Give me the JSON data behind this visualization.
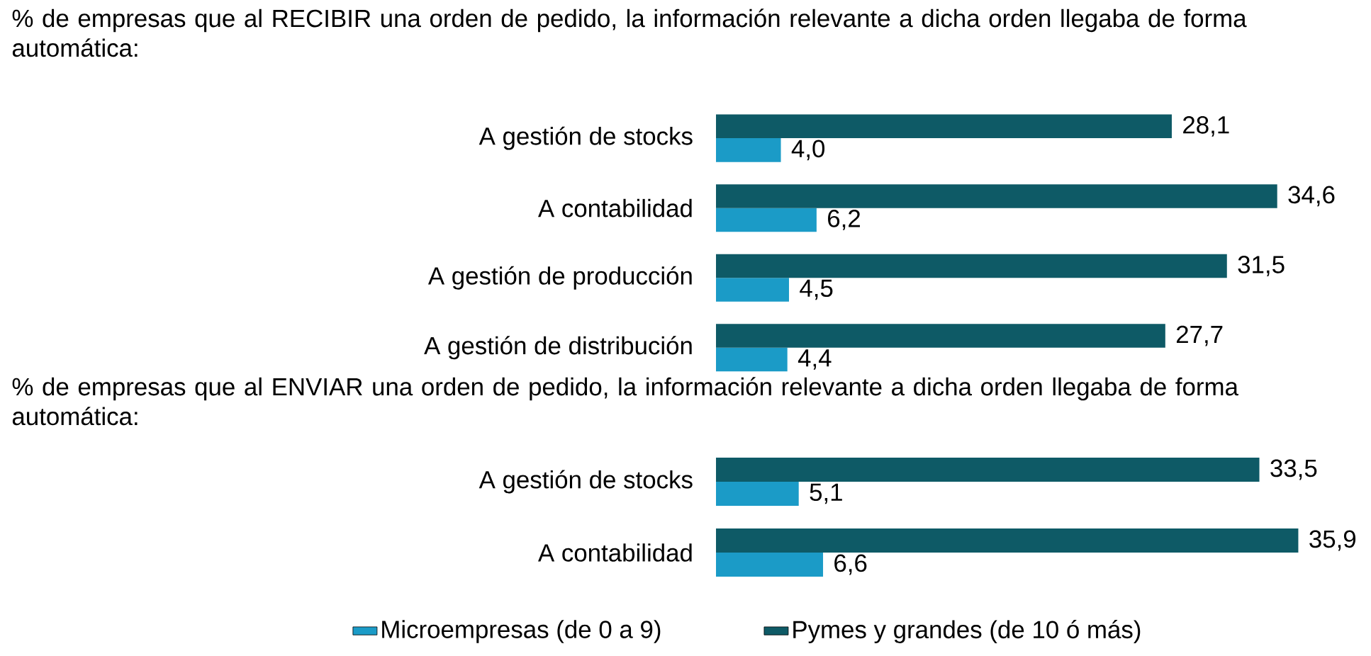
{
  "chart_data": [
    {
      "type": "bar",
      "orientation": "horizontal",
      "title": "% de empresas que al RECIBIR una orden de pedido, la información relevante a dicha orden llegaba de forma automática:",
      "categories": [
        "A gestión de stocks",
        "A contabilidad",
        "A gestión de producción",
        "A gestión de distribución"
      ],
      "tick_labels": "y",
      "legend": false,
      "series": [
        {
          "color": "#1b9bc7",
          "values": [
            4.0,
            6.2,
            4.5,
            4.4
          ],
          "value_labels": [
            "4,0",
            "6,2",
            "4,5",
            "4,4"
          ]
        },
        {
          "color": "#0e5a66",
          "values": [
            28.1,
            34.6,
            31.5,
            27.7
          ],
          "value_labels": [
            "28,1",
            "34,6",
            "31,5",
            "27,7"
          ]
        }
      ]
    },
    {
      "type": "bar",
      "orientation": "horizontal",
      "title": "% de empresas que al ENVIAR una orden de pedido, la información relevante a dicha orden llegaba de forma automática:",
      "categories": [
        "A gestión de stocks",
        "A contabilidad"
      ],
      "tick_labels": "y",
      "legend": "bottom",
      "series": [
        {
          "name": "Microempresas (de 0 a 9)",
          "color": "#1b9bc7",
          "values": [
            5.1,
            6.6
          ],
          "value_labels": [
            "5,1",
            "6,6"
          ]
        },
        {
          "name": "Pymes y grandes (de 10 ó más)",
          "color": "#0e5a66",
          "values": [
            33.5,
            35.9
          ],
          "value_labels": [
            "33,5",
            "35,9"
          ]
        }
      ]
    }
  ]
}
